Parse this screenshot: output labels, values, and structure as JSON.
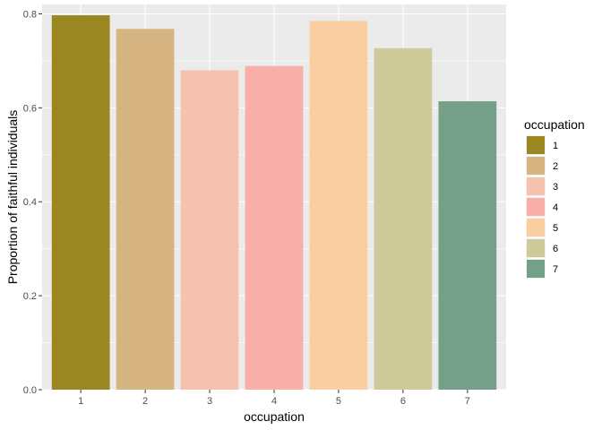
{
  "chart_data": {
    "type": "bar",
    "categories": [
      "1",
      "2",
      "3",
      "4",
      "5",
      "6",
      "7"
    ],
    "values": [
      0.797,
      0.768,
      0.68,
      0.689,
      0.785,
      0.727,
      0.614
    ],
    "colors": [
      "#9a8722",
      "#d7b582",
      "#f6c2b0",
      "#f8afa8",
      "#f9cea0",
      "#cfca9a",
      "#74a089"
    ],
    "title": "",
    "xlabel": "occupation",
    "ylabel": "Proportion of faithful individuals",
    "ylim": [
      0,
      0.82
    ],
    "yticks": [
      0.0,
      0.2,
      0.4,
      0.6,
      0.8
    ],
    "ytick_labels": [
      "0.0",
      "0.2",
      "0.4",
      "0.6",
      "0.8"
    ],
    "grid": true,
    "legend": {
      "title": "occupation",
      "position": "right",
      "entries": [
        "1",
        "2",
        "3",
        "4",
        "5",
        "6",
        "7"
      ]
    }
  }
}
